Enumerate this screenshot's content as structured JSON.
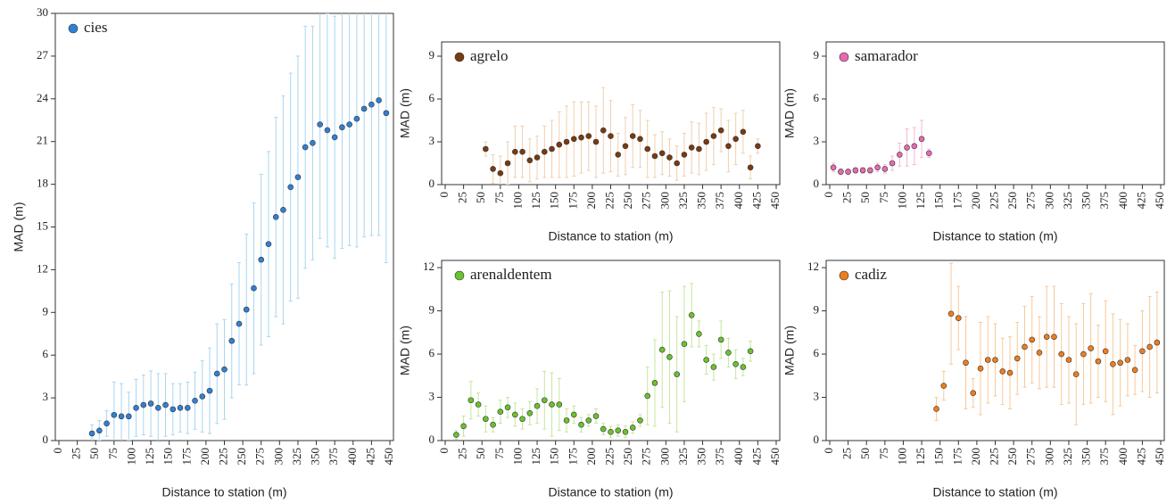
{
  "chart_data": [
    {
      "type": "scatter",
      "xlabel": "Distance to station (m)",
      "ylabel": "MAD (m)",
      "xlim": [
        0,
        450
      ],
      "xticks": [
        0,
        25,
        50,
        75,
        100,
        125,
        150,
        175,
        200,
        225,
        250,
        275,
        300,
        325,
        350,
        375,
        400,
        425,
        450
      ],
      "ylim": [
        0,
        30
      ],
      "yticks": [
        0,
        3,
        6,
        9,
        12,
        15,
        18,
        21,
        24,
        27,
        30
      ],
      "x": [
        45,
        55,
        65,
        75,
        85,
        95,
        105,
        115,
        125,
        135,
        145,
        155,
        165,
        175,
        185,
        195,
        205,
        215,
        225,
        235,
        245,
        255,
        265,
        275,
        285,
        295,
        305,
        315,
        325,
        335,
        345,
        355,
        365,
        375,
        385,
        395,
        405,
        415,
        425,
        435,
        445
      ],
      "series": [
        {
          "name": "cies",
          "color": "#2f80d6",
          "error_color": "#a9d5f2",
          "values": [
            0.5,
            0.7,
            1.2,
            1.8,
            1.7,
            1.7,
            2.3,
            2.5,
            2.6,
            2.3,
            2.5,
            2.2,
            2.3,
            2.3,
            2.8,
            3.1,
            3.5,
            4.7,
            5.0,
            7.0,
            8.2,
            9.2,
            10.7,
            12.7,
            13.8,
            15.7,
            16.2,
            17.8,
            18.5,
            20.6,
            20.9,
            22.2,
            21.8,
            21.3,
            22.0,
            22.2,
            22.6,
            23.3,
            23.6,
            23.9,
            23.0
          ],
          "errors": [
            0.6,
            0.7,
            0.9,
            2.3,
            2.3,
            1.7,
            2.0,
            2.1,
            2.3,
            2.4,
            2.2,
            1.8,
            1.7,
            1.8,
            2.0,
            2.5,
            3.0,
            3.5,
            3.5,
            4.0,
            4.3,
            5.3,
            6.0,
            6.0,
            6.5,
            7.0,
            8.0,
            8.0,
            8.5,
            8.5,
            8.2,
            8.0,
            8.2,
            8.5,
            8.5,
            8.5,
            9.0,
            9.0,
            9.2,
            9.5,
            10.5
          ]
        }
      ]
    },
    {
      "type": "scatter",
      "xlabel": "Distance to station (m)",
      "ylabel": "MAD (m)",
      "xlim": [
        0,
        450
      ],
      "xticks": [
        0,
        25,
        50,
        75,
        100,
        125,
        150,
        175,
        200,
        225,
        250,
        275,
        300,
        325,
        350,
        375,
        400,
        425,
        450
      ],
      "ylim": [
        0,
        10
      ],
      "yticks": [
        0,
        3,
        6,
        9
      ],
      "x": [
        55,
        65,
        75,
        85,
        95,
        105,
        115,
        125,
        135,
        145,
        155,
        165,
        175,
        185,
        195,
        205,
        215,
        225,
        235,
        245,
        255,
        265,
        275,
        285,
        295,
        305,
        315,
        325,
        335,
        345,
        355,
        365,
        375,
        385,
        395,
        405,
        415,
        425
      ],
      "series": [
        {
          "name": "agrelo",
          "color": "#7a3a10",
          "error_color": "#f0cfae",
          "values": [
            2.5,
            1.1,
            0.8,
            1.5,
            2.3,
            2.3,
            1.7,
            1.9,
            2.3,
            2.5,
            2.8,
            3.0,
            3.2,
            3.3,
            3.4,
            3.0,
            3.8,
            3.4,
            2.1,
            2.7,
            3.4,
            3.2,
            2.5,
            2.0,
            2.2,
            1.9,
            1.5,
            2.1,
            2.6,
            2.5,
            3.0,
            3.4,
            3.8,
            2.7,
            3.2,
            3.7,
            1.2,
            2.7
          ],
          "errors": [
            0.5,
            1.0,
            1.2,
            1.5,
            1.8,
            1.8,
            1.5,
            1.5,
            1.8,
            2.0,
            2.3,
            2.5,
            2.6,
            2.5,
            2.4,
            2.5,
            3.0,
            2.5,
            1.5,
            2.0,
            2.2,
            2.0,
            2.0,
            1.5,
            1.5,
            1.3,
            1.2,
            1.5,
            1.8,
            1.8,
            2.0,
            2.0,
            1.5,
            1.8,
            1.8,
            1.5,
            0.8,
            0.5
          ]
        }
      ]
    },
    {
      "type": "scatter",
      "xlabel": "Distance to station (m)",
      "ylabel": "MAD (m)",
      "xlim": [
        0,
        450
      ],
      "xticks": [
        0,
        25,
        50,
        75,
        100,
        125,
        150,
        175,
        200,
        225,
        250,
        275,
        300,
        325,
        350,
        375,
        400,
        425,
        450
      ],
      "ylim": [
        0,
        10
      ],
      "yticks": [
        0,
        3,
        6,
        9
      ],
      "x": [
        5,
        15,
        25,
        35,
        45,
        55,
        65,
        75,
        85,
        95,
        105,
        115,
        125,
        135
      ],
      "series": [
        {
          "name": "samarador",
          "color": "#e66ab0",
          "error_color": "#f2b8d6",
          "values": [
            1.2,
            0.9,
            0.9,
            1.0,
            1.0,
            1.0,
            1.2,
            1.1,
            1.5,
            2.1,
            2.6,
            2.7,
            3.2,
            2.2
          ],
          "errors": [
            0.3,
            0.2,
            0.2,
            0.2,
            0.2,
            0.2,
            0.3,
            0.3,
            0.5,
            0.8,
            1.3,
            1.3,
            1.3,
            0.3
          ]
        }
      ]
    },
    {
      "type": "scatter",
      "xlabel": "Distance to station (m)",
      "ylabel": "MAD (m)",
      "xlim": [
        0,
        450
      ],
      "xticks": [
        0,
        25,
        50,
        75,
        100,
        125,
        150,
        175,
        200,
        225,
        250,
        275,
        300,
        325,
        350,
        375,
        400,
        425,
        450
      ],
      "ylim": [
        0,
        12.5
      ],
      "yticks": [
        0,
        3,
        6,
        9,
        12
      ],
      "x": [
        15,
        25,
        35,
        45,
        55,
        65,
        75,
        85,
        95,
        105,
        115,
        125,
        135,
        145,
        155,
        165,
        175,
        185,
        195,
        205,
        215,
        225,
        235,
        245,
        255,
        265,
        275,
        285,
        295,
        305,
        315,
        325,
        335,
        345,
        355,
        365,
        375,
        385,
        395,
        405,
        415
      ],
      "series": [
        {
          "name": "arenaldentem",
          "color": "#6ac22c",
          "error_color": "#c4e6a0",
          "values": [
            0.4,
            1.0,
            2.8,
            2.5,
            1.5,
            1.1,
            2.0,
            2.3,
            1.8,
            1.5,
            1.9,
            2.4,
            2.8,
            2.5,
            2.5,
            1.4,
            1.8,
            1.1,
            1.4,
            1.7,
            0.8,
            0.6,
            0.7,
            0.6,
            0.9,
            1.4,
            3.1,
            4.0,
            6.3,
            5.8,
            4.6,
            6.7,
            8.7,
            7.4,
            5.6,
            5.1,
            7.0,
            6.1,
            5.3,
            5.1,
            6.2
          ],
          "errors": [
            0.3,
            0.7,
            1.3,
            0.8,
            0.9,
            0.5,
            0.8,
            0.7,
            0.8,
            0.7,
            0.8,
            1.2,
            2.0,
            2.2,
            1.8,
            0.8,
            0.6,
            0.5,
            0.4,
            0.5,
            0.4,
            0.4,
            0.4,
            0.4,
            0.4,
            0.4,
            2.0,
            3.0,
            4.0,
            4.6,
            4.0,
            4.0,
            2.2,
            0.9,
            1.0,
            0.9,
            1.3,
            1.0,
            1.0,
            0.6,
            0.7
          ]
        }
      ]
    },
    {
      "type": "scatter",
      "xlabel": "Distance to station (m)",
      "ylabel": "MAD (m)",
      "xlim": [
        0,
        450
      ],
      "xticks": [
        0,
        25,
        50,
        75,
        100,
        125,
        150,
        175,
        200,
        225,
        250,
        275,
        300,
        325,
        350,
        375,
        400,
        425,
        450
      ],
      "ylim": [
        0,
        12.5
      ],
      "yticks": [
        0,
        3,
        6,
        9,
        12
      ],
      "x": [
        145,
        155,
        165,
        175,
        185,
        195,
        205,
        215,
        225,
        235,
        245,
        255,
        265,
        275,
        285,
        295,
        305,
        315,
        325,
        335,
        345,
        355,
        365,
        375,
        385,
        395,
        405,
        415,
        425,
        435,
        445
      ],
      "series": [
        {
          "name": "cadiz",
          "color": "#f07d1c",
          "error_color": "#f7c89a",
          "values": [
            2.2,
            3.8,
            8.8,
            8.5,
            5.4,
            3.3,
            5.0,
            5.6,
            5.6,
            4.8,
            4.7,
            5.7,
            6.5,
            7.0,
            6.1,
            7.2,
            7.2,
            6.0,
            5.6,
            4.6,
            6.0,
            6.4,
            5.5,
            6.2,
            5.3,
            5.4,
            5.6,
            4.9,
            6.2,
            6.5,
            6.8
          ],
          "errors": [
            0.8,
            1.0,
            3.5,
            2.2,
            3.2,
            1.0,
            3.2,
            3.0,
            2.5,
            2.3,
            2.5,
            2.5,
            2.8,
            3.0,
            2.5,
            3.5,
            3.5,
            3.5,
            3.0,
            3.5,
            3.5,
            3.8,
            2.5,
            3.5,
            3.5,
            3.0,
            2.5,
            1.7,
            2.8,
            3.5,
            3.5
          ]
        }
      ]
    }
  ]
}
